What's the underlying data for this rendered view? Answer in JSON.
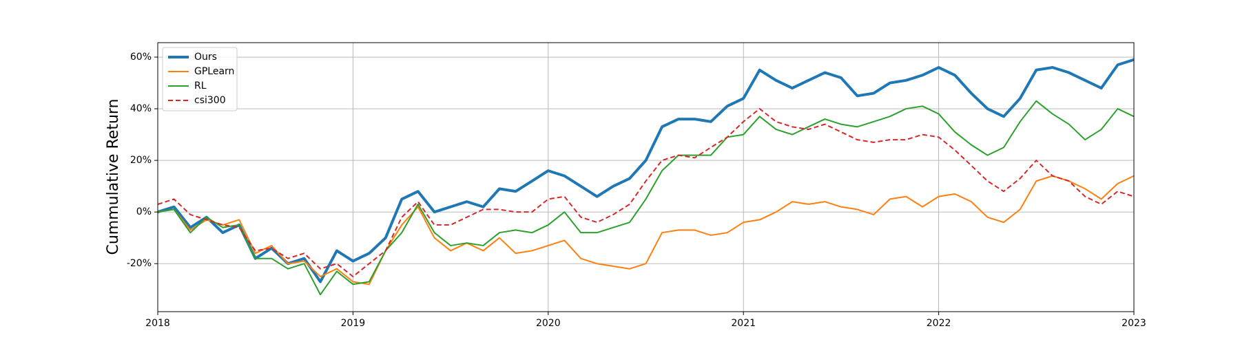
{
  "chart_data": {
    "type": "line",
    "y_label": "Cummulative Return",
    "x": [
      2018,
      2018.083,
      2018.167,
      2018.25,
      2018.333,
      2018.417,
      2018.5,
      2018.583,
      2018.667,
      2018.75,
      2018.833,
      2018.917,
      2019,
      2019.083,
      2019.167,
      2019.25,
      2019.333,
      2019.417,
      2019.5,
      2019.583,
      2019.667,
      2019.75,
      2019.833,
      2019.917,
      2020,
      2020.083,
      2020.167,
      2020.25,
      2020.333,
      2020.417,
      2020.5,
      2020.583,
      2020.667,
      2020.75,
      2020.833,
      2020.917,
      2021,
      2021.083,
      2021.167,
      2021.25,
      2021.333,
      2021.417,
      2021.5,
      2021.583,
      2021.667,
      2021.75,
      2021.833,
      2021.917,
      2022,
      2022.083,
      2022.167,
      2022.25,
      2022.333,
      2022.417,
      2022.5,
      2022.583,
      2022.667,
      2022.75,
      2022.833,
      2022.917,
      2023
    ],
    "series": [
      {
        "name": "Ours",
        "color": "#1f77b4",
        "linewidth": 4,
        "linestyle": "solid",
        "values": [
          0,
          2,
          -6,
          -2,
          -8,
          -5,
          -18,
          -14,
          -20,
          -18,
          -27,
          -15,
          -19,
          -16,
          -10,
          5,
          8,
          0,
          2,
          4,
          2,
          9,
          8,
          12,
          16,
          14,
          10,
          6,
          10,
          13,
          20,
          33,
          36,
          36,
          35,
          41,
          44,
          55,
          51,
          48,
          51,
          54,
          52,
          45,
          46,
          50,
          51,
          53,
          56,
          53,
          46,
          40,
          37,
          44,
          55,
          56,
          54,
          51,
          48,
          57,
          59
        ]
      },
      {
        "name": "GPLearn",
        "color": "#ff7f0e",
        "linewidth": 2,
        "linestyle": "solid",
        "values": [
          0,
          1,
          -7,
          -3,
          -5,
          -3,
          -16,
          -13,
          -20,
          -19,
          -25,
          -22,
          -27,
          -28,
          -15,
          -5,
          2,
          -10,
          -15,
          -12,
          -15,
          -10,
          -16,
          -15,
          -13,
          -11,
          -18,
          -20,
          -21,
          -22,
          -20,
          -8,
          -7,
          -7,
          -9,
          -8,
          -4,
          -3,
          0,
          4,
          3,
          4,
          2,
          1,
          -1,
          5,
          6,
          2,
          6,
          7,
          4,
          -2,
          -4,
          1,
          12,
          14,
          12,
          9,
          5,
          11,
          14
        ]
      },
      {
        "name": "RL",
        "color": "#2ca02c",
        "linewidth": 2,
        "linestyle": "solid",
        "values": [
          0,
          1,
          -8,
          -2,
          -6,
          -5,
          -18,
          -18,
          -22,
          -20,
          -32,
          -23,
          -28,
          -27,
          -15,
          -8,
          3,
          -8,
          -13,
          -12,
          -13,
          -8,
          -7,
          -8,
          -5,
          0,
          -8,
          -8,
          -6,
          -4,
          5,
          16,
          22,
          22,
          22,
          29,
          30,
          37,
          32,
          30,
          33,
          36,
          34,
          33,
          35,
          37,
          40,
          41,
          38,
          31,
          26,
          22,
          25,
          35,
          43,
          38,
          34,
          28,
          32,
          40,
          37
        ]
      },
      {
        "name": "csi300",
        "color": "#d62728",
        "linewidth": 2,
        "linestyle": "dashed",
        "values": [
          3,
          5,
          -1,
          -3,
          -5,
          -6,
          -15,
          -14,
          -18,
          -16,
          -22,
          -20,
          -25,
          -20,
          -15,
          -2,
          4,
          -5,
          -5,
          -2,
          1,
          1,
          0,
          0,
          5,
          6,
          -2,
          -4,
          -1,
          3,
          12,
          20,
          22,
          21,
          25,
          29,
          35,
          40,
          35,
          33,
          32,
          34,
          31,
          28,
          27,
          28,
          28,
          30,
          29,
          24,
          18,
          12,
          8,
          13,
          20,
          14,
          12,
          6,
          3,
          8,
          6
        ]
      }
    ],
    "xlim": [
      2018,
      2023
    ],
    "xticks": [
      2018,
      2019,
      2020,
      2021,
      2022,
      2023
    ],
    "ylim": [
      -38.6,
      65.6
    ],
    "yticks": [
      {
        "value": -20,
        "label": "-20%"
      },
      {
        "value": 0,
        "label": "0%"
      },
      {
        "value": 20,
        "label": "20%"
      },
      {
        "value": 40,
        "label": "40%"
      },
      {
        "value": 60,
        "label": "60%"
      }
    ],
    "grid": true,
    "legend": "upper left"
  }
}
